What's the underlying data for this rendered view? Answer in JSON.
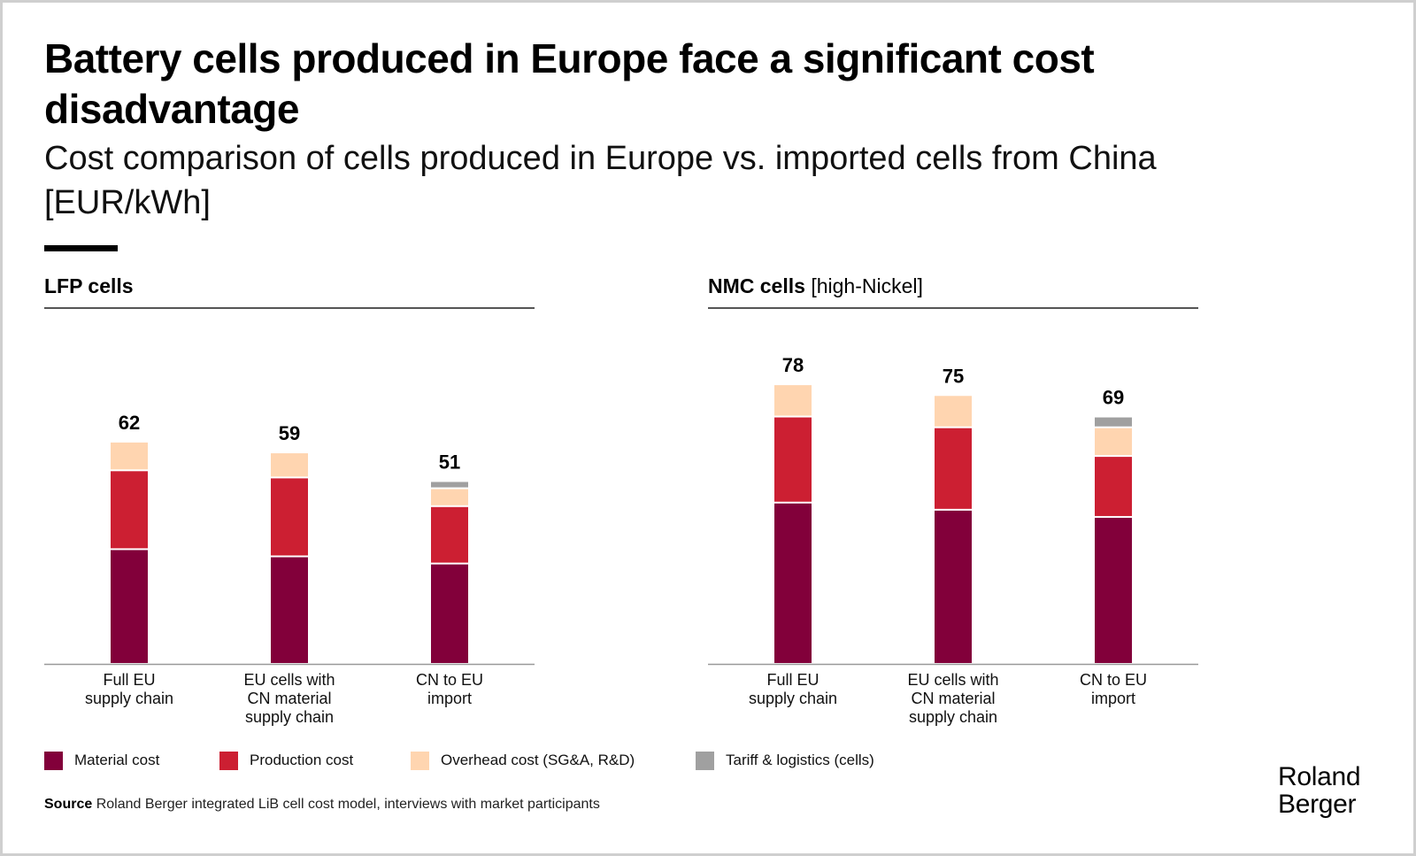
{
  "header": {
    "title": "Battery cells produced in Europe face a significant cost disadvantage",
    "subtitle": "Cost comparison of cells produced in Europe vs. imported cells from China [EUR/kWh]"
  },
  "colors": {
    "material": "#82003A",
    "production": "#CC1F32",
    "overhead": "#FFD5B0",
    "tariff": "#A0A0A0",
    "accent": "#000000"
  },
  "legend": [
    {
      "key": "material",
      "label": "Material cost",
      "color": "#82003A"
    },
    {
      "key": "production",
      "label": "Production cost",
      "color": "#CC1F32"
    },
    {
      "key": "overhead",
      "label": "Overhead cost (SG&A, R&D)",
      "color": "#FFD5B0"
    },
    {
      "key": "tariff",
      "label": "Tariff & logistics (cells)",
      "color": "#A0A0A0"
    }
  ],
  "source": {
    "label": "Source",
    "text": "Roland Berger integrated LiB cell cost model, interviews with market participants"
  },
  "logo": {
    "line1": "Roland",
    "line2": "Berger"
  },
  "chart_data": [
    {
      "type": "bar",
      "stacked": true,
      "title": "LFP cells",
      "title_suffix": "",
      "unit": "EUR/kWh",
      "categories": [
        [
          "Full EU",
          "supply chain"
        ],
        [
          "EU cells with",
          "CN material",
          "supply chain"
        ],
        [
          "CN to EU",
          "import"
        ]
      ],
      "series": [
        {
          "name": "Material cost",
          "key": "material",
          "values": [
            32,
            30,
            28
          ]
        },
        {
          "name": "Production cost",
          "key": "production",
          "values": [
            22,
            22,
            16
          ]
        },
        {
          "name": "Overhead cost (SG&A, R&D)",
          "key": "overhead",
          "values": [
            8,
            7,
            5
          ]
        },
        {
          "name": "Tariff & logistics (cells)",
          "key": "tariff",
          "values": [
            0,
            0,
            2
          ]
        }
      ],
      "totals": [
        62,
        59,
        51
      ],
      "ylim": [
        0,
        80
      ],
      "grid": false,
      "legend_position": "bottom"
    },
    {
      "type": "bar",
      "stacked": true,
      "title": "NMC cells",
      "title_suffix": "[high-Nickel]",
      "unit": "EUR/kWh",
      "categories": [
        [
          "Full EU",
          "supply chain"
        ],
        [
          "EU cells with",
          "CN material",
          "supply chain"
        ],
        [
          "CN to EU",
          "import"
        ]
      ],
      "series": [
        {
          "name": "Material cost",
          "key": "material",
          "values": [
            45,
            43,
            41
          ]
        },
        {
          "name": "Production cost",
          "key": "production",
          "values": [
            24,
            23,
            17
          ]
        },
        {
          "name": "Overhead cost (SG&A, R&D)",
          "key": "overhead",
          "values": [
            9,
            9,
            8
          ]
        },
        {
          "name": "Tariff & logistics (cells)",
          "key": "tariff",
          "values": [
            0,
            0,
            3
          ]
        }
      ],
      "totals": [
        78,
        75,
        69
      ],
      "ylim": [
        0,
        80
      ],
      "grid": false,
      "legend_position": "bottom"
    }
  ]
}
